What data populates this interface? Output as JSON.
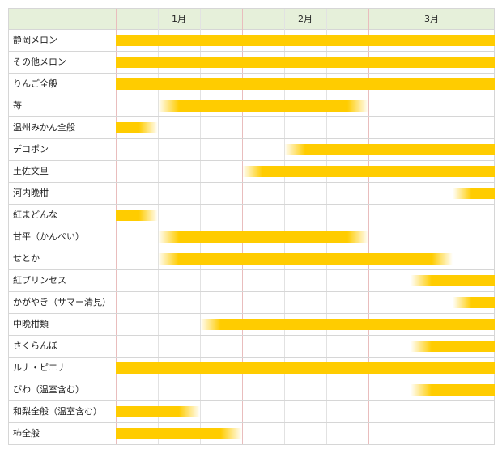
{
  "months": [
    "1月",
    "2月",
    "3月"
  ],
  "colors": {
    "bar": "#ffcc00",
    "header_bg": "#e6f0da",
    "grid": "#d6d6d6",
    "month_line": "#e9bdbd"
  },
  "rows": [
    {
      "label": "静岡メロン",
      "segments": [
        {
          "start": 0,
          "end": 9,
          "fade_start": false,
          "fade_end": false
        }
      ]
    },
    {
      "label": "その他メロン",
      "segments": [
        {
          "start": 0,
          "end": 9,
          "fade_start": false,
          "fade_end": false
        }
      ]
    },
    {
      "label": "りんご全般",
      "segments": [
        {
          "start": 0,
          "end": 9,
          "fade_start": false,
          "fade_end": false
        }
      ]
    },
    {
      "label": "苺",
      "segments": [
        {
          "start": 1,
          "end": 6,
          "fade_start": true,
          "fade_end": true
        }
      ]
    },
    {
      "label": "温州みかん全般",
      "segments": [
        {
          "start": 0,
          "end": 1,
          "fade_start": false,
          "fade_end": true
        }
      ]
    },
    {
      "label": "デコポン",
      "segments": [
        {
          "start": 4,
          "end": 9,
          "fade_start": true,
          "fade_end": false
        }
      ]
    },
    {
      "label": "土佐文旦",
      "segments": [
        {
          "start": 3,
          "end": 9,
          "fade_start": true,
          "fade_end": false
        }
      ]
    },
    {
      "label": "河内晩柑",
      "segments": [
        {
          "start": 8,
          "end": 9,
          "fade_start": true,
          "fade_end": false
        }
      ]
    },
    {
      "label": "紅まどんな",
      "segments": [
        {
          "start": 0,
          "end": 1,
          "fade_start": false,
          "fade_end": true
        }
      ]
    },
    {
      "label": "甘平（かんぺい）",
      "segments": [
        {
          "start": 1,
          "end": 6,
          "fade_start": true,
          "fade_end": true
        }
      ]
    },
    {
      "label": "せとか",
      "segments": [
        {
          "start": 1,
          "end": 8,
          "fade_start": true,
          "fade_end": true
        }
      ]
    },
    {
      "label": "紅プリンセス",
      "segments": [
        {
          "start": 7,
          "end": 9,
          "fade_start": true,
          "fade_end": false
        }
      ]
    },
    {
      "label": "かがやき（サマー清見）",
      "segments": [
        {
          "start": 8,
          "end": 9,
          "fade_start": true,
          "fade_end": false
        }
      ]
    },
    {
      "label": "中晩柑類",
      "segments": [
        {
          "start": 2,
          "end": 9,
          "fade_start": true,
          "fade_end": false
        }
      ]
    },
    {
      "label": "さくらんぼ",
      "segments": [
        {
          "start": 7,
          "end": 9,
          "fade_start": true,
          "fade_end": false
        }
      ]
    },
    {
      "label": "ルナ・ピエナ",
      "segments": [
        {
          "start": 0,
          "end": 9,
          "fade_start": false,
          "fade_end": false
        }
      ]
    },
    {
      "label": "びわ（温室含む）",
      "segments": [
        {
          "start": 7,
          "end": 9,
          "fade_start": true,
          "fade_end": false
        }
      ]
    },
    {
      "label": "和梨全般（温室含む）",
      "segments": [
        {
          "start": 0,
          "end": 2,
          "fade_start": false,
          "fade_end": true
        }
      ]
    },
    {
      "label": "柿全般",
      "segments": [
        {
          "start": 0,
          "end": 3,
          "fade_start": false,
          "fade_end": true
        }
      ]
    }
  ]
}
